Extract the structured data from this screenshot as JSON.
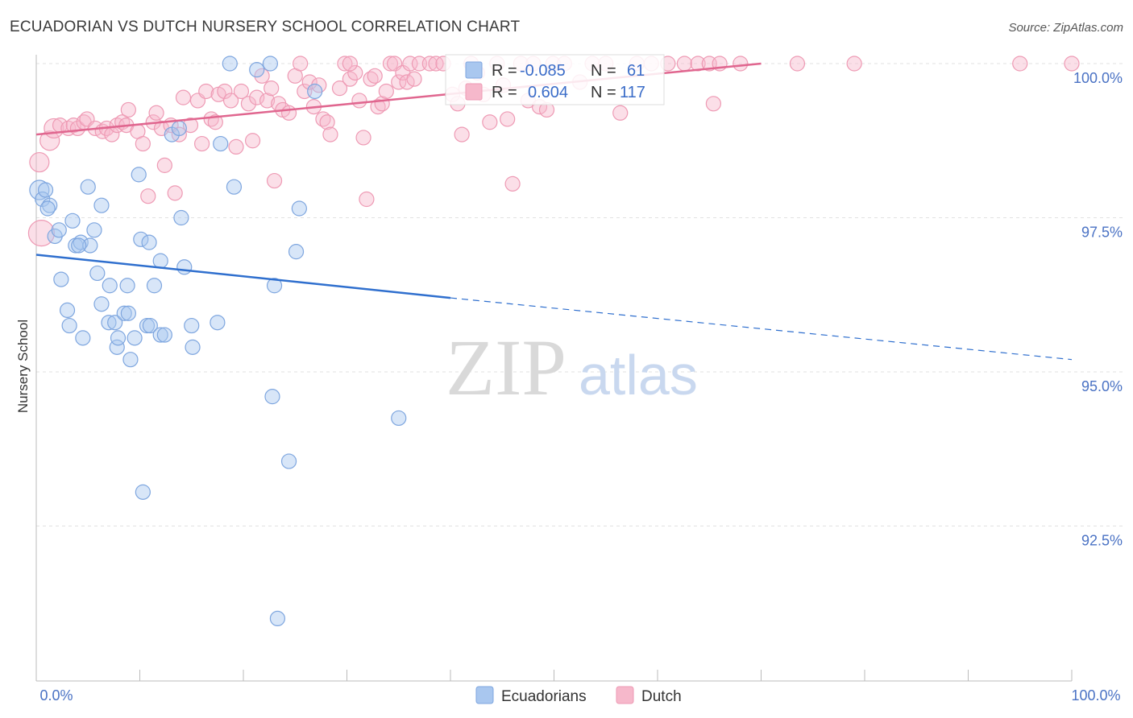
{
  "title": "ECUADORIAN VS DUTCH NURSERY SCHOOL CORRELATION CHART",
  "source": "Source: ZipAtlas.com",
  "watermark": {
    "zip": "ZIP",
    "atlas": "atlas"
  },
  "legend_top": {
    "r_label": "R =",
    "n_label": "N =",
    "series": [
      {
        "name": "Ecuadorians",
        "r": "-0.085",
        "n": "61"
      },
      {
        "name": "Dutch",
        "r": "0.604",
        "n": "117"
      }
    ]
  },
  "colors": {
    "blue_fill": "#a9c7ef",
    "blue_stroke": "#7ea6df",
    "blue_line": "#2f6fce",
    "pink_fill": "#f6b8cb",
    "pink_stroke": "#ee9ab4",
    "pink_line": "#e0668f",
    "grid": "#e2e2e2",
    "axis": "#bbbbbb"
  },
  "chart_data": {
    "type": "scatter",
    "title": "ECUADORIAN VS DUTCH NURSERY SCHOOL CORRELATION CHART",
    "xlabel": "",
    "ylabel": "Nursery School",
    "xlim": [
      0,
      100
    ],
    "ylim": [
      90.0,
      100.2
    ],
    "x_tick_labels": [
      "0.0%",
      "100.0%"
    ],
    "y_ticks": [
      92.5,
      95.0,
      97.5,
      100.0
    ],
    "y_tick_labels": [
      "92.5%",
      "95.0%",
      "97.5%",
      "100.0%"
    ],
    "legend": [
      "Ecuadorians",
      "Dutch"
    ],
    "series": [
      {
        "name": "Ecuadorians",
        "trend": {
          "x": [
            0,
            40
          ],
          "y": [
            96.9,
            96.2
          ],
          "dashed_to": [
            100,
            95.2
          ]
        },
        "points": [
          [
            0.3,
            97.95,
            2
          ],
          [
            0.6,
            97.8,
            1
          ],
          [
            0.9,
            97.95,
            1
          ],
          [
            1.3,
            97.7,
            1
          ],
          [
            1.8,
            97.2,
            1
          ],
          [
            2.2,
            97.3,
            1
          ],
          [
            3.5,
            97.45,
            1
          ],
          [
            3.8,
            97.05,
            1
          ],
          [
            4.3,
            97.1,
            1
          ],
          [
            5.2,
            97.05,
            1
          ],
          [
            5.6,
            97.3,
            1
          ],
          [
            6.3,
            97.7,
            1
          ],
          [
            5.0,
            98.0,
            1
          ],
          [
            2.4,
            96.5,
            1
          ],
          [
            3.0,
            96.0,
            1
          ],
          [
            3.2,
            95.75,
            1
          ],
          [
            4.5,
            95.55,
            1
          ],
          [
            5.9,
            96.6,
            1
          ],
          [
            6.3,
            96.1,
            1
          ],
          [
            7.1,
            96.4,
            1
          ],
          [
            7.0,
            95.8,
            1
          ],
          [
            7.6,
            95.8,
            1
          ],
          [
            7.8,
            95.4,
            1
          ],
          [
            7.9,
            95.55,
            1
          ],
          [
            8.5,
            95.95,
            1
          ],
          [
            8.9,
            95.95,
            1
          ],
          [
            8.8,
            96.4,
            1
          ],
          [
            9.1,
            95.2,
            1
          ],
          [
            9.5,
            95.55,
            1
          ],
          [
            9.9,
            98.2,
            1
          ],
          [
            10.1,
            97.15,
            1
          ],
          [
            10.9,
            97.1,
            1
          ],
          [
            10.7,
            95.75,
            1
          ],
          [
            11.0,
            95.75,
            1
          ],
          [
            11.4,
            96.4,
            1
          ],
          [
            12.0,
            95.6,
            1
          ],
          [
            12.4,
            95.6,
            1
          ],
          [
            12.0,
            96.8,
            1
          ],
          [
            13.1,
            98.85,
            1
          ],
          [
            13.8,
            98.95,
            1
          ],
          [
            14.0,
            97.5,
            1
          ],
          [
            14.3,
            96.7,
            1
          ],
          [
            15.0,
            95.75,
            1
          ],
          [
            15.1,
            95.4,
            1
          ],
          [
            17.5,
            95.8,
            1
          ],
          [
            17.8,
            98.7,
            1
          ],
          [
            18.7,
            100.0,
            1
          ],
          [
            19.1,
            98.0,
            1
          ],
          [
            21.3,
            99.9,
            1
          ],
          [
            22.6,
            100.0,
            1
          ],
          [
            22.8,
            94.6,
            1
          ],
          [
            23.0,
            96.4,
            1
          ],
          [
            24.4,
            93.55,
            1
          ],
          [
            25.1,
            96.95,
            1
          ],
          [
            25.4,
            97.65,
            1
          ],
          [
            26.9,
            99.55,
            1
          ],
          [
            35.0,
            94.25,
            1
          ],
          [
            10.3,
            93.05,
            1
          ],
          [
            23.3,
            91.0,
            1
          ],
          [
            1.1,
            97.65,
            1
          ],
          [
            4.1,
            97.05,
            1
          ]
        ]
      },
      {
        "name": "Dutch",
        "trend": {
          "x": [
            0,
            70
          ],
          "y": [
            98.85,
            100.0
          ]
        },
        "points": [
          [
            0.3,
            98.4,
            2
          ],
          [
            0.5,
            97.25,
            3
          ],
          [
            1.3,
            98.75,
            2
          ],
          [
            1.7,
            98.95,
            2
          ],
          [
            2.3,
            99.0,
            1
          ],
          [
            3.1,
            98.95,
            1
          ],
          [
            3.6,
            99.0,
            1
          ],
          [
            4.0,
            98.95,
            1
          ],
          [
            4.6,
            99.05,
            1
          ],
          [
            4.9,
            99.1,
            1
          ],
          [
            5.7,
            98.95,
            1
          ],
          [
            6.4,
            98.9,
            1
          ],
          [
            6.8,
            98.95,
            1
          ],
          [
            7.3,
            98.85,
            1
          ],
          [
            7.8,
            99.0,
            1
          ],
          [
            8.3,
            99.05,
            1
          ],
          [
            8.7,
            99.0,
            1
          ],
          [
            8.9,
            99.25,
            1
          ],
          [
            9.8,
            98.9,
            1
          ],
          [
            10.3,
            98.7,
            1
          ],
          [
            10.8,
            97.85,
            1
          ],
          [
            11.3,
            99.05,
            1
          ],
          [
            11.6,
            99.2,
            1
          ],
          [
            12.1,
            98.95,
            1
          ],
          [
            12.4,
            98.35,
            1
          ],
          [
            13.0,
            99.0,
            1
          ],
          [
            13.4,
            97.9,
            1
          ],
          [
            13.8,
            98.85,
            1
          ],
          [
            14.2,
            99.45,
            1
          ],
          [
            14.9,
            99.0,
            1
          ],
          [
            15.6,
            99.4,
            1
          ],
          [
            16.0,
            98.7,
            1
          ],
          [
            16.4,
            99.55,
            1
          ],
          [
            16.9,
            99.1,
            1
          ],
          [
            17.3,
            99.05,
            1
          ],
          [
            17.6,
            99.5,
            1
          ],
          [
            18.2,
            99.55,
            1
          ],
          [
            18.8,
            99.4,
            1
          ],
          [
            19.3,
            98.65,
            1
          ],
          [
            19.8,
            99.55,
            1
          ],
          [
            20.5,
            99.35,
            1
          ],
          [
            20.9,
            98.75,
            1
          ],
          [
            21.3,
            99.45,
            1
          ],
          [
            21.8,
            99.8,
            1
          ],
          [
            22.3,
            99.4,
            1
          ],
          [
            22.7,
            99.6,
            1
          ],
          [
            23.0,
            98.1,
            1
          ],
          [
            23.4,
            99.35,
            1
          ],
          [
            23.8,
            99.25,
            1
          ],
          [
            24.4,
            99.2,
            1
          ],
          [
            25.0,
            99.8,
            1
          ],
          [
            25.5,
            100.0,
            1
          ],
          [
            25.9,
            99.55,
            1
          ],
          [
            26.4,
            99.7,
            1
          ],
          [
            26.8,
            99.3,
            1
          ],
          [
            27.3,
            99.65,
            1
          ],
          [
            27.7,
            99.1,
            1
          ],
          [
            28.1,
            99.05,
            1
          ],
          [
            28.4,
            98.85,
            1
          ],
          [
            29.3,
            99.6,
            1
          ],
          [
            29.8,
            100.0,
            1
          ],
          [
            30.3,
            99.75,
            1
          ],
          [
            30.8,
            99.85,
            1
          ],
          [
            31.2,
            99.4,
            1
          ],
          [
            31.6,
            98.8,
            1
          ],
          [
            31.9,
            97.8,
            1
          ],
          [
            32.3,
            99.75,
            1
          ],
          [
            32.7,
            99.8,
            1
          ],
          [
            33.0,
            99.3,
            1
          ],
          [
            33.4,
            99.35,
            1
          ],
          [
            33.8,
            99.55,
            1
          ],
          [
            34.2,
            100.0,
            1
          ],
          [
            34.6,
            100.0,
            1
          ],
          [
            35.0,
            99.7,
            1
          ],
          [
            35.4,
            99.85,
            1
          ],
          [
            35.8,
            99.7,
            1
          ],
          [
            36.1,
            100.0,
            1
          ],
          [
            36.5,
            99.75,
            1
          ],
          [
            37.0,
            100.0,
            1
          ],
          [
            38.0,
            100.0,
            1
          ],
          [
            38.6,
            100.0,
            1
          ],
          [
            39.3,
            100.0,
            1
          ],
          [
            40.2,
            99.5,
            1
          ],
          [
            40.7,
            99.35,
            1
          ],
          [
            41.1,
            98.85,
            1
          ],
          [
            41.5,
            99.6,
            1
          ],
          [
            42.0,
            100.0,
            1
          ],
          [
            42.6,
            99.85,
            1
          ],
          [
            43.2,
            99.5,
            1
          ],
          [
            43.8,
            99.05,
            1
          ],
          [
            44.5,
            100.0,
            1
          ],
          [
            45.1,
            99.65,
            1
          ],
          [
            45.5,
            99.1,
            1
          ],
          [
            46.0,
            98.05,
            1
          ],
          [
            46.8,
            100.0,
            1
          ],
          [
            47.5,
            99.4,
            1
          ],
          [
            48.0,
            100.0,
            1
          ],
          [
            48.6,
            99.3,
            1
          ],
          [
            49.3,
            99.25,
            1
          ],
          [
            49.9,
            100.0,
            1
          ],
          [
            51.0,
            100.0,
            1
          ],
          [
            52.5,
            99.7,
            1
          ],
          [
            53.7,
            100.0,
            1
          ],
          [
            55.0,
            100.0,
            1
          ],
          [
            56.4,
            99.2,
            1
          ],
          [
            58.0,
            100.0,
            1
          ],
          [
            59.4,
            100.0,
            1
          ],
          [
            61.0,
            100.0,
            1
          ],
          [
            62.6,
            100.0,
            1
          ],
          [
            63.9,
            100.0,
            1
          ],
          [
            65.0,
            100.0,
            1
          ],
          [
            65.4,
            99.35,
            1
          ],
          [
            66.0,
            100.0,
            1
          ],
          [
            68.0,
            100.0,
            1
          ],
          [
            73.5,
            100.0,
            1
          ],
          [
            79.0,
            100.0,
            1
          ],
          [
            95.0,
            100.0,
            1
          ],
          [
            100.0,
            100.0,
            1
          ],
          [
            30.3,
            100.0,
            1
          ]
        ]
      }
    ]
  }
}
